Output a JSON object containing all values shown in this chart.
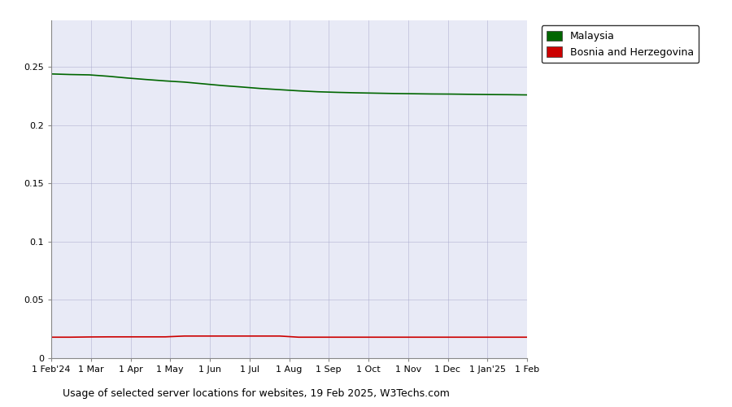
{
  "xlabel": "Usage of selected server locations for websites, 19 Feb 2025, W3Techs.com",
  "background_color": "#e8eaf6",
  "plot_bg_color": "#e8eaf6",
  "outer_bg_color": "#ffffff",
  "malaysia_color": "#006600",
  "bosnia_color": "#cc0000",
  "tick_labels": [
    "1 Feb'24",
    "1 Mar",
    "1 Apr",
    "1 May",
    "1 Jun",
    "1 Jul",
    "1 Aug",
    "1 Sep",
    "1 Oct",
    "1 Nov",
    "1 Dec",
    "1 Jan'25",
    "1 Feb"
  ],
  "ylim": [
    0,
    0.29
  ],
  "yticks": [
    0,
    0.05,
    0.1,
    0.15,
    0.2,
    0.25
  ],
  "ytick_labels": [
    "0",
    "0.05",
    "0.1",
    "0.15",
    "0.2",
    "0.25"
  ],
  "malaysia_values": [
    0.244,
    0.2435,
    0.2432,
    0.242,
    0.2405,
    0.2392,
    0.238,
    0.237,
    0.2355,
    0.234,
    0.2328,
    0.2315,
    0.2305,
    0.2295,
    0.2287,
    0.2282,
    0.2278,
    0.2275,
    0.2272,
    0.227,
    0.2268,
    0.2267,
    0.2265,
    0.2263,
    0.2262,
    0.226
  ],
  "bosnia_values": [
    0.018,
    0.018,
    0.0182,
    0.0183,
    0.0183,
    0.0183,
    0.0183,
    0.019,
    0.019,
    0.019,
    0.019,
    0.019,
    0.019,
    0.018,
    0.018,
    0.018,
    0.018,
    0.018,
    0.018,
    0.018,
    0.018,
    0.018,
    0.018,
    0.018,
    0.018,
    0.018
  ],
  "legend_labels": [
    "Malaysia",
    "Bosnia and Herzegovina"
  ],
  "legend_colors": [
    "#006600",
    "#cc0000"
  ],
  "figsize": [
    9.0,
    5.0
  ],
  "dpi": 100,
  "grid_color": "#aaaacc",
  "n_ticks": 13
}
